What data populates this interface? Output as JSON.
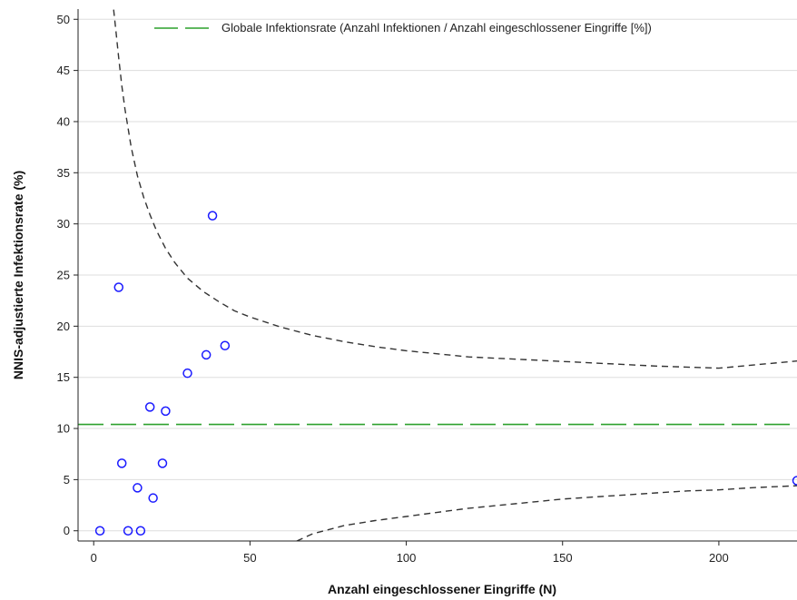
{
  "chart_data": {
    "type": "scatter",
    "title": "",
    "xlabel": "Anzahl eingeschlossener Eingriffe (N)",
    "ylabel": "NNIS-adjustierte Infektionsrate (%)",
    "xlim": [
      -5,
      225
    ],
    "ylim": [
      -1,
      51
    ],
    "xticks": [
      0,
      50,
      100,
      150,
      200
    ],
    "yticks": [
      0,
      5,
      10,
      15,
      20,
      25,
      30,
      35,
      40,
      45,
      50
    ],
    "grid": "horizontal",
    "legend": {
      "placement": "top-right",
      "entries": [
        {
          "label": "Globale Infektionsrate (Anzahl Infektionen / Anzahl eingeschlossener Eingriffe [%])",
          "style": "dashed-line",
          "color": "#2ca02c"
        }
      ]
    },
    "reference_line": {
      "y": 10.4,
      "color": "#2ca02c"
    },
    "control_limits": {
      "color": "#333333",
      "style": "dashed",
      "upper": {
        "x": [
          6,
          7,
          8,
          9,
          10,
          12,
          14,
          16,
          18,
          20,
          23,
          26,
          30,
          35,
          40,
          45,
          50,
          60,
          70,
          80,
          90,
          100,
          120,
          140,
          160,
          180,
          200,
          225
        ],
        "y": [
          52,
          49.2,
          46.2,
          43.5,
          41.2,
          37.5,
          34.7,
          32.6,
          30.9,
          29.4,
          27.6,
          26.2,
          24.7,
          23.4,
          22.4,
          21.5,
          20.9,
          19.9,
          19.1,
          18.5,
          18.0,
          17.6,
          17.0,
          16.7,
          16.4,
          16.1,
          15.9,
          16.6
        ]
      },
      "lower": {
        "x": [
          65,
          70,
          80,
          90,
          100,
          110,
          120,
          130,
          140,
          150,
          160,
          170,
          180,
          190,
          200,
          210,
          225
        ],
        "y": [
          -1.0,
          -0.3,
          0.5,
          1.0,
          1.4,
          1.8,
          2.2,
          2.5,
          2.8,
          3.1,
          3.3,
          3.5,
          3.7,
          3.9,
          4.0,
          4.2,
          4.4
        ]
      }
    },
    "series": [
      {
        "marker": "open-circle",
        "color": "#1a1aff",
        "x": [
          2,
          8,
          9,
          11,
          14,
          15,
          18,
          19,
          22,
          23,
          30,
          36,
          38,
          42,
          225
        ],
        "y": [
          0,
          23.8,
          6.6,
          0,
          4.2,
          0,
          12.1,
          3.2,
          6.6,
          11.7,
          15.4,
          17.2,
          30.8,
          18.1,
          4.9
        ]
      }
    ]
  }
}
